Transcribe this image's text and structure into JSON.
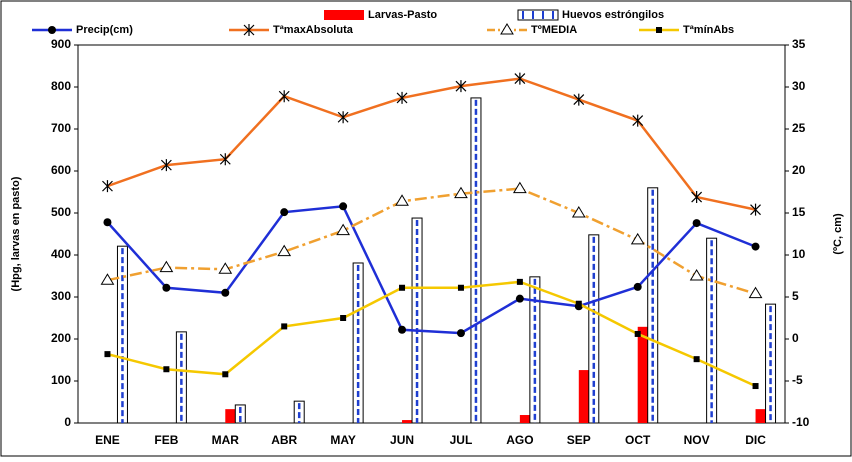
{
  "chart_data": {
    "type": "bar-line",
    "categories": [
      "ENE",
      "FEB",
      "MAR",
      "ABR",
      "MAY",
      "JUN",
      "JUL",
      "AGO",
      "SEP",
      "OCT",
      "NOV",
      "DIC"
    ],
    "ylabel": "(Hpg, larvas en pasto)",
    "y2label": "(ºC, cm)",
    "ylim": [
      0,
      900
    ],
    "yticks": [
      0,
      100,
      200,
      300,
      400,
      500,
      600,
      700,
      800,
      900
    ],
    "y2lim": [
      -10,
      35
    ],
    "y2ticks": [
      -10,
      -5,
      0,
      5,
      10,
      15,
      20,
      25,
      30,
      35
    ],
    "series": [
      {
        "name": "Larvas-Pasto",
        "kind": "bar",
        "color": "#ff0000",
        "values": [
          0,
          0,
          33,
          0,
          0,
          7,
          0,
          19,
          126,
          229,
          0,
          33
        ]
      },
      {
        "name": "Huevos estróngilos",
        "kind": "bar",
        "color": "#1f3fd0",
        "values": [
          421,
          217,
          43,
          52,
          381,
          488,
          774,
          348,
          448,
          560,
          440,
          283
        ]
      },
      {
        "name": "Precip(cm)",
        "kind": "line",
        "axis": "y2",
        "marker": "circle",
        "color": "#1f2fd6",
        "values": [
          13.9,
          6.1,
          5.5,
          15.1,
          15.8,
          1.1,
          0.7,
          4.8,
          3.9,
          6.2,
          13.8,
          11.0
        ]
      },
      {
        "name": "TªmaxAbsoluta",
        "kind": "line",
        "axis": "y2",
        "marker": "star",
        "color": "#f07020",
        "values": [
          18.2,
          20.7,
          21.4,
          28.9,
          26.4,
          28.7,
          30.1,
          31.0,
          28.5,
          26.0,
          16.9,
          15.4
        ]
      },
      {
        "name": "TºMEDIA",
        "kind": "line",
        "axis": "y2",
        "marker": "triangle",
        "dashed": true,
        "color": "#f0a030",
        "values": [
          7.0,
          8.5,
          8.3,
          10.4,
          12.9,
          16.4,
          17.3,
          17.9,
          15.0,
          11.8,
          7.5,
          5.4
        ]
      },
      {
        "name": "TªmínAbs",
        "kind": "line",
        "axis": "y2",
        "marker": "square",
        "color": "#f5c800",
        "values": [
          -1.8,
          -3.6,
          -4.2,
          1.5,
          2.5,
          6.1,
          6.1,
          6.8,
          4.2,
          0.6,
          -2.4,
          -5.6
        ]
      }
    ]
  }
}
